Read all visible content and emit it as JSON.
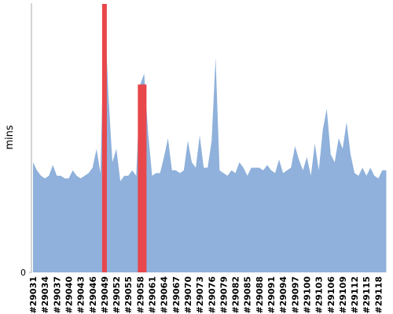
{
  "chart_data": {
    "type": "area",
    "y_label": "mins",
    "categories": [
      "#29031",
      null,
      null,
      "#29034",
      null,
      null,
      "#29037",
      null,
      null,
      "#29040",
      null,
      null,
      "#29043",
      null,
      null,
      "#29046",
      null,
      null,
      "#29049",
      null,
      null,
      "#29052",
      null,
      null,
      "#29055",
      null,
      null,
      "#29058",
      null,
      null,
      "#29061",
      null,
      null,
      "#29064",
      null,
      null,
      "#29067",
      null,
      null,
      "#29070",
      null,
      null,
      "#29073",
      null,
      null,
      "#29076",
      null,
      null,
      "#29079",
      null,
      null,
      "#29082",
      null,
      null,
      "#29085",
      null,
      null,
      "#29088",
      null,
      null,
      "#29091",
      null,
      null,
      "#29094",
      null,
      null,
      "#29097",
      null,
      null,
      "#29100",
      null,
      null,
      "#29103",
      null,
      null,
      "#29106",
      null,
      null,
      "#29109",
      null,
      null,
      "#29112",
      null,
      null,
      "#29115",
      null,
      null,
      "#29118",
      null,
      null
    ],
    "series": [
      {
        "color": "#8fb1db",
        "values": [
          41,
          38,
          36,
          35,
          36,
          40,
          36,
          36,
          35,
          35,
          38,
          36,
          35,
          36,
          37,
          39,
          46,
          37,
          100,
          66,
          41,
          46,
          34,
          36,
          36,
          38,
          36,
          70,
          74,
          52,
          36,
          37,
          37,
          43,
          50,
          38,
          38,
          37,
          38,
          49,
          41,
          39,
          51,
          39,
          39,
          49,
          80,
          38,
          37,
          36,
          38,
          37,
          41,
          39,
          36,
          39,
          39,
          39,
          38,
          40,
          38,
          37,
          42,
          37,
          38,
          39,
          47,
          42,
          38,
          43,
          36,
          48,
          38,
          53,
          61,
          44,
          41,
          50,
          46,
          56,
          44,
          37,
          36,
          39,
          36,
          39,
          36,
          35,
          38,
          38
        ]
      },
      {
        "color": "#e8474b",
        "values": [
          null,
          null,
          null,
          null,
          null,
          null,
          null,
          null,
          null,
          null,
          null,
          null,
          null,
          null,
          null,
          null,
          null,
          null,
          100,
          null,
          null,
          null,
          null,
          null,
          null,
          null,
          null,
          70,
          70,
          null,
          null,
          null,
          null,
          null,
          null,
          null,
          null,
          null,
          null,
          null,
          null,
          null,
          null,
          null,
          null,
          null,
          null,
          null,
          null,
          null,
          null,
          null,
          null,
          null,
          null,
          null,
          null,
          null,
          null,
          null,
          null,
          null,
          null,
          null,
          null,
          null,
          null,
          null,
          null,
          null,
          null,
          null,
          null,
          null,
          null,
          null,
          null,
          null,
          null,
          null,
          null,
          null,
          null,
          null,
          null,
          null,
          null,
          null,
          null,
          null
        ]
      }
    ],
    "ylim": [
      0,
      100
    ],
    "yticks": [
      0
    ]
  }
}
